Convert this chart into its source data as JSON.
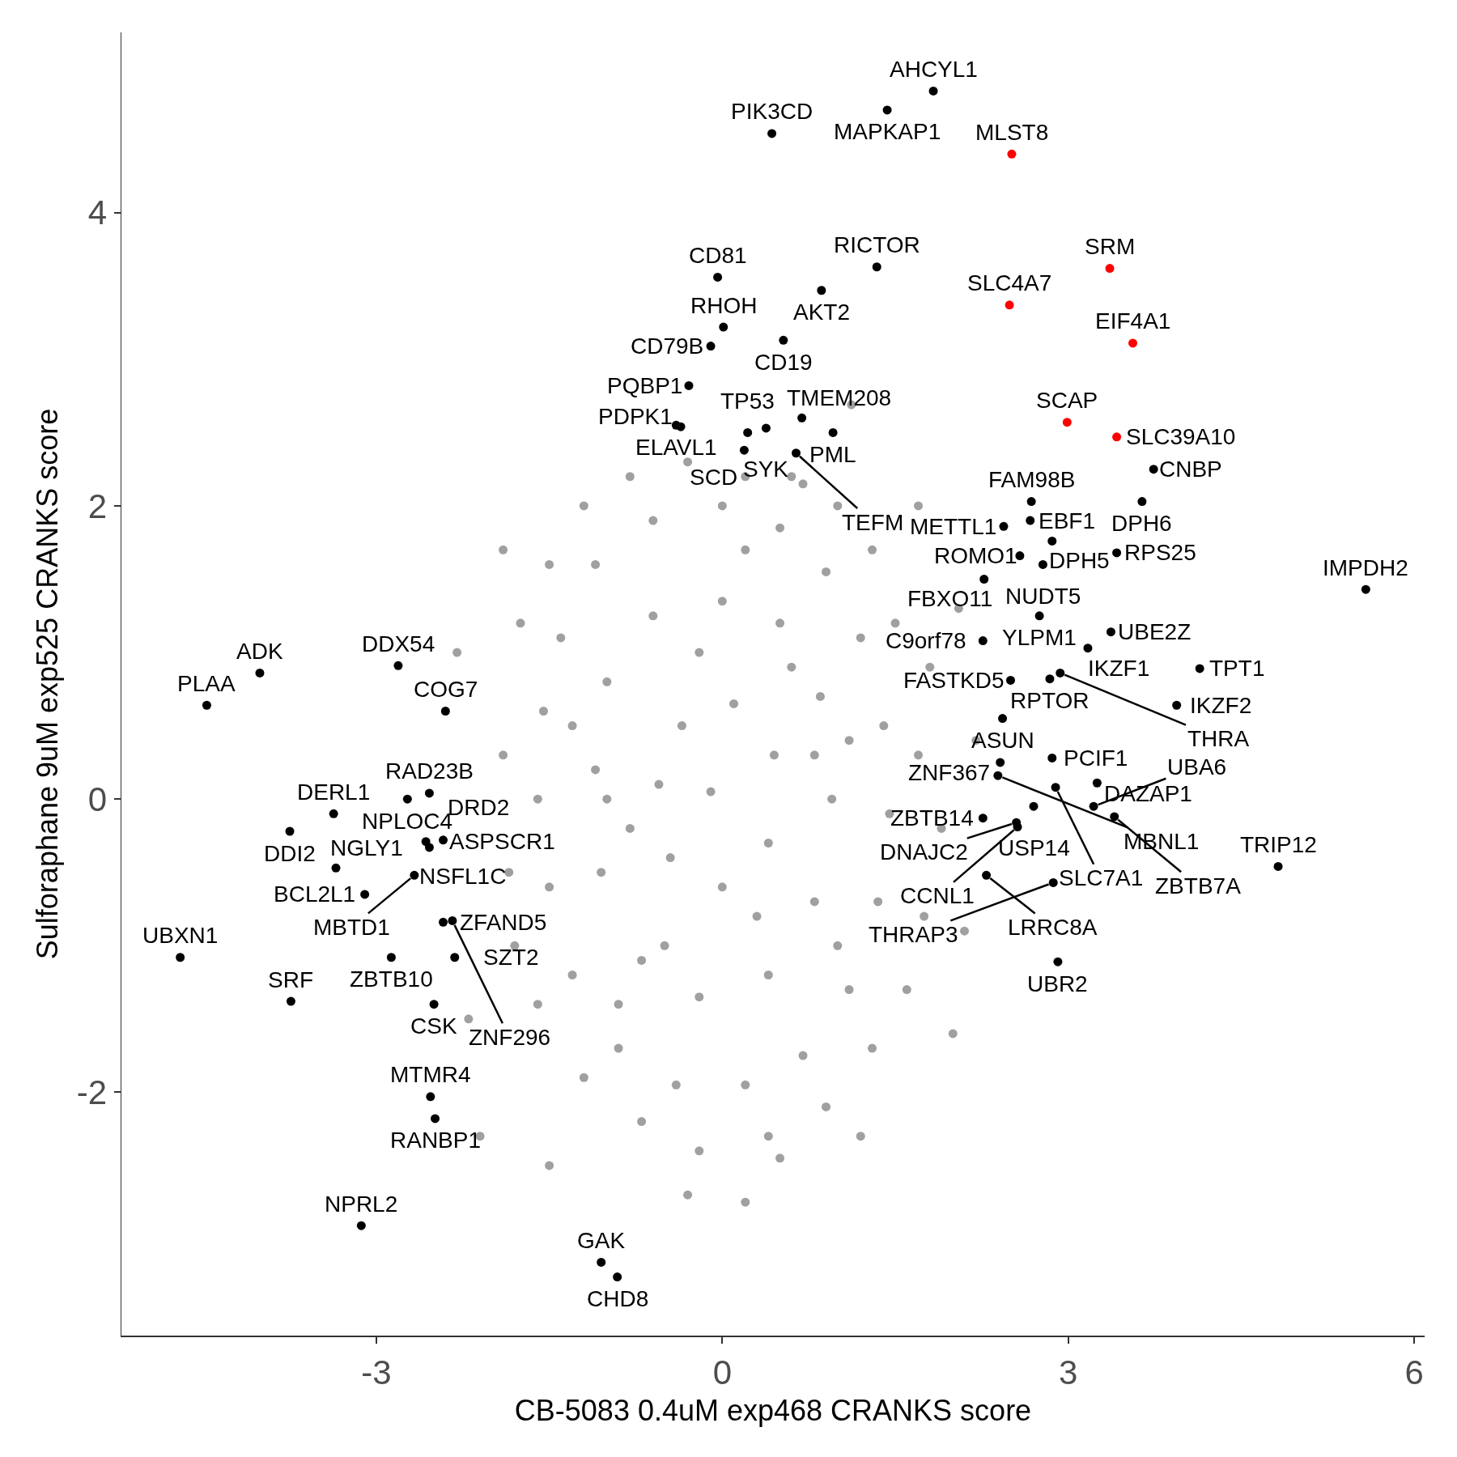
{
  "chart_data": {
    "type": "scatter",
    "xlabel": "CB-5083 0.4uM exp468 CRANKS score",
    "ylabel": "Sulforaphane 9uM exp525 CRANKS score",
    "xlim": [
      -5.21,
      6.09
    ],
    "ylim": [
      -3.66,
      5.23
    ],
    "xticks": [
      -3,
      0,
      3,
      6
    ],
    "yticks": [
      -2,
      0,
      2,
      4
    ],
    "grid": false,
    "marker": "circle",
    "series": [
      {
        "color": "#a0a0a0",
        "x": [
          -1.6,
          -1.55,
          -1.4,
          -1.1,
          -0.6,
          0.0,
          0.5,
          0.9,
          1.2,
          1.4,
          1.45,
          1.35,
          1.1,
          0.7,
          0.2,
          -0.4,
          -0.9,
          -1.3,
          -1.5,
          -1.1,
          -1.0,
          -0.6,
          0.0,
          0.5,
          0.85,
          0.95,
          0.8,
          0.4,
          -0.2,
          -0.7,
          -1.05,
          -0.55,
          -0.35,
          0.1,
          0.45,
          0.4,
          0.0,
          -0.45,
          -0.1,
          -1.9,
          -1.85,
          -1.75,
          -1.5,
          -1.2,
          -0.8,
          -0.3,
          0.2,
          0.7,
          1.0,
          1.3,
          1.5,
          1.8,
          1.7,
          1.9,
          1.75,
          1.6,
          1.3,
          0.9,
          0.4,
          -0.2,
          -0.7,
          -1.2,
          -1.6,
          -1.8,
          -1.9,
          -2.3,
          -2.2,
          -2.1,
          -1.5,
          -0.3,
          0.2,
          0.5,
          1.2,
          2.0,
          2.1,
          2.2,
          2.05,
          1.7,
          1.12,
          0.6,
          -1.0,
          -0.5,
          0.3,
          0.6,
          -0.2,
          0.8,
          -0.8,
          0.2,
          -0.9,
          1.0,
          -1.3,
          1.1
        ],
        "values": [
          0.0,
          0.6,
          1.1,
          1.6,
          1.9,
          2.0,
          1.85,
          1.55,
          1.1,
          0.5,
          -0.1,
          -0.7,
          -1.3,
          -1.75,
          -1.95,
          -1.95,
          -1.7,
          -1.2,
          -0.6,
          0.2,
          0.8,
          1.25,
          1.35,
          1.2,
          0.7,
          0.0,
          -0.7,
          -1.2,
          -1.35,
          -1.1,
          -0.5,
          0.1,
          0.5,
          0.65,
          0.3,
          -0.3,
          -0.6,
          -0.4,
          0.05,
          0.3,
          -0.5,
          1.2,
          1.6,
          2.0,
          2.2,
          2.3,
          2.2,
          2.15,
          2.0,
          1.7,
          1.2,
          0.9,
          0.3,
          -0.2,
          -0.8,
          -1.3,
          -1.7,
          -2.1,
          -2.3,
          -2.4,
          -2.2,
          -1.9,
          -1.4,
          -1.0,
          1.7,
          1.0,
          -1.5,
          -2.3,
          -2.5,
          -2.7,
          -2.75,
          -2.45,
          -2.3,
          -1.6,
          -0.9,
          0.4,
          1.3,
          2.0,
          2.69,
          2.2,
          0.0,
          -1.0,
          -0.8,
          0.9,
          1.0,
          0.3,
          -0.2,
          1.7,
          -1.4,
          -1.0,
          0.5,
          0.4
        ]
      },
      {
        "color": "#000000",
        "x": [
          1.83,
          1.43,
          0.43,
          1.34,
          -0.04,
          0.86,
          0.01,
          -0.1,
          0.53,
          -0.29,
          -0.4,
          -0.36,
          0.22,
          0.38,
          0.69,
          0.96,
          0.19,
          0.64,
          2.68,
          2.67,
          2.44,
          2.86,
          3.64,
          3.74,
          3.42,
          2.58,
          2.78,
          2.27,
          2.75,
          3.17,
          3.37,
          4.14,
          3.94,
          2.26,
          2.5,
          2.84,
          2.93,
          2.43,
          2.41,
          2.39,
          2.26,
          2.86,
          3.25,
          2.89,
          2.7,
          3.22,
          3.4,
          2.55,
          2.56,
          2.29,
          2.87,
          4.82,
          5.58,
          2.91,
          -4.01,
          -4.47,
          -2.81,
          -2.4,
          -2.54,
          -2.73,
          -3.37,
          -3.75,
          -2.57,
          -2.54,
          -2.42,
          -3.35,
          -2.67,
          -3.1,
          -2.42,
          -2.34,
          -4.7,
          -2.87,
          -2.32,
          -3.74,
          -2.5,
          -2.53,
          -2.49,
          -3.13,
          -1.05,
          -0.91
        ],
        "values": [
          4.83,
          4.7,
          4.54,
          3.63,
          3.56,
          3.47,
          3.22,
          3.09,
          3.13,
          2.82,
          2.55,
          2.54,
          2.5,
          2.53,
          2.6,
          2.5,
          2.38,
          2.36,
          2.03,
          1.9,
          1.86,
          1.76,
          2.03,
          2.25,
          1.68,
          1.66,
          1.6,
          1.5,
          1.25,
          1.03,
          1.14,
          0.89,
          0.64,
          1.08,
          0.81,
          0.82,
          0.86,
          0.55,
          0.25,
          0.16,
          -0.13,
          0.28,
          0.11,
          0.08,
          -0.05,
          -0.05,
          -0.12,
          -0.16,
          -0.19,
          -0.52,
          -0.57,
          -0.46,
          1.43,
          -1.11,
          0.86,
          0.64,
          0.91,
          0.6,
          0.04,
          0.0,
          -0.1,
          -0.22,
          -0.29,
          -0.33,
          -0.28,
          -0.47,
          -0.52,
          -0.65,
          -0.84,
          -0.83,
          -1.08,
          -1.08,
          -1.08,
          -1.38,
          -1.4,
          -2.03,
          -2.18,
          -2.91,
          -3.16,
          -3.26
        ]
      },
      {
        "color": "#ff0000",
        "x": [
          2.51,
          3.36,
          2.49,
          3.56,
          2.99,
          3.42
        ],
        "values": [
          4.4,
          3.62,
          3.37,
          3.11,
          2.57,
          2.47
        ]
      }
    ],
    "annotations": [
      {
        "text": "AHCYL1",
        "x": 1.83,
        "y": 4.83
      },
      {
        "text": "MAPKAP1",
        "x": 1.43,
        "y": 4.7
      },
      {
        "text": "PIK3CD",
        "x": 0.43,
        "y": 4.54
      },
      {
        "text": "MLST8",
        "x": 2.51,
        "y": 4.4
      },
      {
        "text": "SRM",
        "x": 3.36,
        "y": 3.62
      },
      {
        "text": "RICTOR",
        "x": 1.34,
        "y": 3.63
      },
      {
        "text": "CD81",
        "x": -0.04,
        "y": 3.56
      },
      {
        "text": "AKT2",
        "x": 0.86,
        "y": 3.47
      },
      {
        "text": "SLC4A7",
        "x": 2.49,
        "y": 3.37
      },
      {
        "text": "RHOH",
        "x": 0.01,
        "y": 3.22
      },
      {
        "text": "CD79B",
        "x": -0.1,
        "y": 3.09
      },
      {
        "text": "CD19",
        "x": 0.53,
        "y": 3.13
      },
      {
        "text": "EIF4A1",
        "x": 3.56,
        "y": 3.11
      },
      {
        "text": "PQBP1",
        "x": -0.29,
        "y": 2.82
      },
      {
        "text": "SCAP",
        "x": 2.99,
        "y": 2.57
      },
      {
        "text": "SLC39A10",
        "x": 3.42,
        "y": 2.47
      },
      {
        "text": "ELAVL1",
        "x": -0.4,
        "y": 2.55
      },
      {
        "text": "TP53",
        "x": 0.22,
        "y": 2.5
      },
      {
        "text": "SYK",
        "x": 0.38,
        "y": 2.53
      },
      {
        "text": "TMEM208",
        "x": 0.69,
        "y": 2.6
      },
      {
        "text": "PML",
        "x": 0.96,
        "y": 2.5
      },
      {
        "text": "SCD",
        "x": 0.19,
        "y": 2.38
      },
      {
        "text": "TEFM",
        "x": 0.64,
        "y": 2.36
      },
      {
        "text": "PDPK1",
        "x": -0.36,
        "y": 2.54
      },
      {
        "text": "CNBP",
        "x": 3.74,
        "y": 2.25
      },
      {
        "text": "FAM98B",
        "x": 2.68,
        "y": 2.03
      },
      {
        "text": "EBF1",
        "x": 2.67,
        "y": 1.9
      },
      {
        "text": "METTL1",
        "x": 2.44,
        "y": 1.86
      },
      {
        "text": "DPH5",
        "x": 2.86,
        "y": 1.76
      },
      {
        "text": "DPH6",
        "x": 3.64,
        "y": 2.03
      },
      {
        "text": "RPS25",
        "x": 3.42,
        "y": 1.68
      },
      {
        "text": "ROMO1",
        "x": 2.58,
        "y": 1.66
      },
      {
        "text": "NUDT5",
        "x": 2.78,
        "y": 1.6
      },
      {
        "text": "FBXO11",
        "x": 2.27,
        "y": 1.5
      },
      {
        "text": "IMPDH2",
        "x": 5.58,
        "y": 1.43
      },
      {
        "text": "YLPM1",
        "x": 2.75,
        "y": 1.25
      },
      {
        "text": "UBE2Z",
        "x": 3.37,
        "y": 1.14
      },
      {
        "text": "C9orf78",
        "x": 2.26,
        "y": 1.08
      },
      {
        "text": "IKZF1",
        "x": 3.17,
        "y": 1.03
      },
      {
        "text": "TPT1",
        "x": 4.14,
        "y": 0.89
      },
      {
        "text": "FASTKD5",
        "x": 2.5,
        "y": 0.81
      },
      {
        "text": "RPTOR",
        "x": 2.84,
        "y": 0.82
      },
      {
        "text": "THRA",
        "x": 2.93,
        "y": 0.86
      },
      {
        "text": "IKZF2",
        "x": 3.94,
        "y": 0.64
      },
      {
        "text": "ASUN",
        "x": 2.43,
        "y": 0.55
      },
      {
        "text": "ZNF367",
        "x": 2.41,
        "y": 0.25
      },
      {
        "text": "PCIF1",
        "x": 2.86,
        "y": 0.28
      },
      {
        "text": "DAZAP1",
        "x": 3.25,
        "y": 0.11
      },
      {
        "text": "MBNL1",
        "x": 2.39,
        "y": 0.16
      },
      {
        "text": "SLC7A1",
        "x": 2.89,
        "y": 0.08
      },
      {
        "text": "USP14",
        "x": 2.7,
        "y": -0.05
      },
      {
        "text": "ZBTB14",
        "x": 2.26,
        "y": -0.13
      },
      {
        "text": "UBA6",
        "x": 3.22,
        "y": -0.05
      },
      {
        "text": "ZBTB7A",
        "x": 3.4,
        "y": -0.12
      },
      {
        "text": "DNAJC2",
        "x": 2.55,
        "y": -0.16
      },
      {
        "text": "CCNL1",
        "x": 2.56,
        "y": -0.19
      },
      {
        "text": "TRIP12",
        "x": 4.82,
        "y": -0.46
      },
      {
        "text": "LRRC8A",
        "x": 2.29,
        "y": -0.52
      },
      {
        "text": "THRAP3",
        "x": 2.87,
        "y": -0.57
      },
      {
        "text": "UBR2",
        "x": 2.91,
        "y": -1.11
      },
      {
        "text": "ADK",
        "x": -4.01,
        "y": 0.86
      },
      {
        "text": "DDX54",
        "x": -2.81,
        "y": 0.91
      },
      {
        "text": "PLAA",
        "x": -4.47,
        "y": 0.64
      },
      {
        "text": "COG7",
        "x": -2.4,
        "y": 0.6
      },
      {
        "text": "RAD23B",
        "x": -2.54,
        "y": 0.04
      },
      {
        "text": "NPLOC4",
        "x": -2.73,
        "y": 0.0
      },
      {
        "text": "DRD2",
        "x": -2.54,
        "y": 0.04
      },
      {
        "text": "DERL1",
        "x": -3.37,
        "y": -0.1
      },
      {
        "text": "DDI2",
        "x": -3.75,
        "y": -0.22
      },
      {
        "text": "ASPSCR1",
        "x": -2.57,
        "y": -0.29
      },
      {
        "text": "NSFL1C",
        "x": -2.42,
        "y": -0.28
      },
      {
        "text": "NGLY1",
        "x": -3.35,
        "y": -0.47
      },
      {
        "text": "MBTD1",
        "x": -2.67,
        "y": -0.52
      },
      {
        "text": "BCL2L1",
        "x": -3.1,
        "y": -0.65
      },
      {
        "text": "ZFAND5",
        "x": -2.42,
        "y": -0.84
      },
      {
        "text": "ZNF296",
        "x": -2.34,
        "y": -0.83
      },
      {
        "text": "UBXN1",
        "x": -4.7,
        "y": -1.08
      },
      {
        "text": "ZBTB10",
        "x": -2.87,
        "y": -1.08
      },
      {
        "text": "SZT2",
        "x": -2.32,
        "y": -1.08
      },
      {
        "text": "SRF",
        "x": -3.74,
        "y": -1.38
      },
      {
        "text": "CSK",
        "x": -2.5,
        "y": -1.4
      },
      {
        "text": "MTMR4",
        "x": -2.53,
        "y": -2.03
      },
      {
        "text": "RANBP1",
        "x": -2.49,
        "y": -2.18
      },
      {
        "text": "NPRL2",
        "x": -3.13,
        "y": -2.91
      },
      {
        "text": "GAK",
        "x": -1.05,
        "y": -3.16
      },
      {
        "text": "CHD8",
        "x": -0.91,
        "y": -3.26
      }
    ]
  }
}
